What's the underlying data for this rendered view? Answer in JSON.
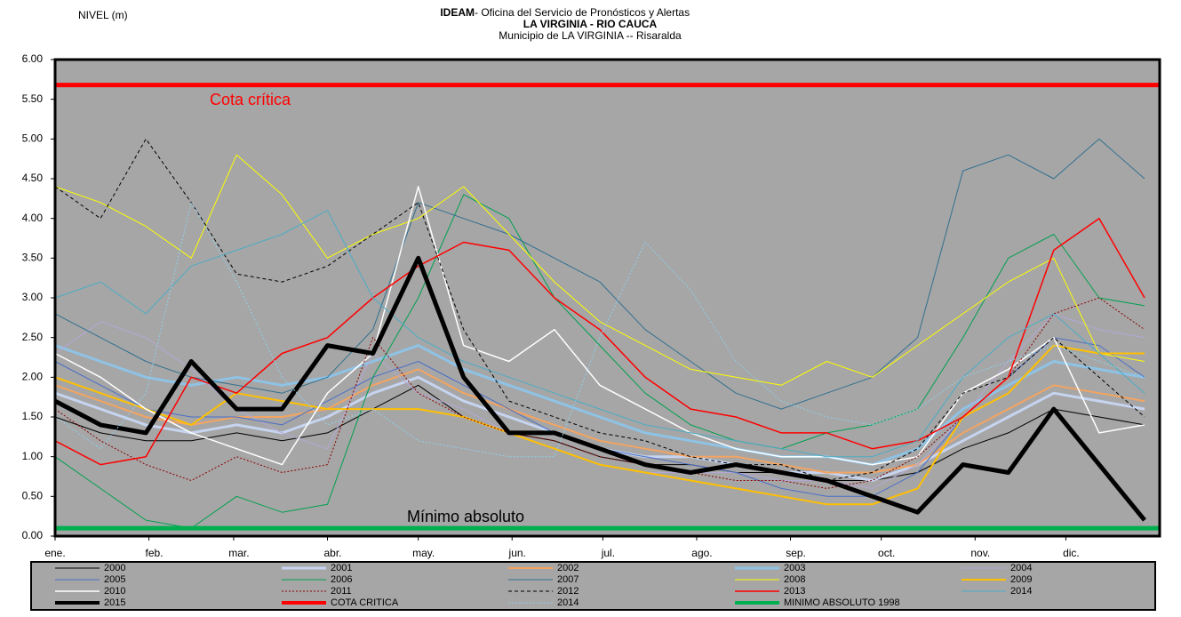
{
  "chart_data": {
    "type": "line",
    "title_org": "IDEAM",
    "title": " - Oficina del Servicio de Pronósticos y Alertas",
    "subtitle": "LA VIRGINIA - RIO CAUCA",
    "subtitle2": "Municipio de LA VIRGINIA -- Risaralda",
    "y_label": "NIVEL (m)",
    "annotations": [
      "Cota crítica",
      "Mínimo absoluto"
    ],
    "xlim": [
      0,
      365
    ],
    "xticks": [
      {
        "value": 0,
        "label": "ene."
      },
      {
        "value": 31,
        "label": "feb."
      },
      {
        "value": 59,
        "label": "mar."
      },
      {
        "value": 90,
        "label": "abr."
      },
      {
        "value": 120,
        "label": "may."
      },
      {
        "value": 151,
        "label": "jun."
      },
      {
        "value": 181,
        "label": "jul."
      },
      {
        "value": 212,
        "label": "ago."
      },
      {
        "value": 243,
        "label": "sep."
      },
      {
        "value": 273,
        "label": "oct."
      },
      {
        "value": 304,
        "label": "nov."
      },
      {
        "value": 334,
        "label": "dic."
      }
    ],
    "ylim": [
      0,
      6
    ],
    "yticks": [
      {
        "value": 0,
        "label": "0.00"
      },
      {
        "value": 0.5,
        "label": "0.50"
      },
      {
        "value": 1,
        "label": "1.00"
      },
      {
        "value": 1.5,
        "label": "1.50"
      },
      {
        "value": 2,
        "label": "2.00"
      },
      {
        "value": 2.5,
        "label": "2.50"
      },
      {
        "value": 3,
        "label": "3.00"
      },
      {
        "value": 3.5,
        "label": "3.50"
      },
      {
        "value": 4,
        "label": "4.00"
      },
      {
        "value": 4.5,
        "label": "4.50"
      },
      {
        "value": 5,
        "label": "5.00"
      },
      {
        "value": 5.5,
        "label": "5.50"
      },
      {
        "value": 6,
        "label": "6.00"
      }
    ],
    "x": [
      0,
      15,
      30,
      45,
      60,
      75,
      90,
      105,
      120,
      135,
      150,
      165,
      180,
      195,
      210,
      225,
      240,
      255,
      270,
      285,
      300,
      315,
      330,
      345,
      360
    ],
    "series": [
      {
        "name": "2000",
        "color": "#000000",
        "width": 1,
        "values": [
          1.5,
          1.3,
          1.2,
          1.2,
          1.3,
          1.2,
          1.3,
          1.6,
          1.9,
          1.5,
          1.3,
          1.2,
          1.0,
          0.9,
          0.9,
          0.8,
          0.8,
          0.7,
          0.7,
          0.8,
          1.1,
          1.3,
          1.6,
          1.5,
          1.4
        ]
      },
      {
        "name": "2001",
        "color": "#c6d4f0",
        "width": 3,
        "values": [
          1.8,
          1.6,
          1.4,
          1.3,
          1.4,
          1.3,
          1.5,
          1.8,
          2.0,
          1.7,
          1.5,
          1.3,
          1.1,
          1.0,
          1.0,
          0.9,
          0.8,
          0.8,
          0.7,
          0.9,
          1.2,
          1.5,
          1.8,
          1.7,
          1.6
        ]
      },
      {
        "name": "2002",
        "color": "#f4a460",
        "width": 2,
        "values": [
          1.9,
          1.7,
          1.5,
          1.4,
          1.5,
          1.5,
          1.6,
          1.9,
          2.1,
          1.8,
          1.6,
          1.4,
          1.2,
          1.1,
          1.0,
          1.0,
          0.9,
          0.8,
          0.8,
          0.9,
          1.3,
          1.6,
          1.9,
          1.8,
          1.7
        ]
      },
      {
        "name": "2003",
        "color": "#8ec3e6",
        "width": 3,
        "values": [
          2.4,
          2.2,
          2.0,
          1.9,
          2.0,
          1.9,
          2.0,
          2.2,
          2.4,
          2.1,
          1.9,
          1.7,
          1.5,
          1.3,
          1.2,
          1.1,
          1.0,
          1.0,
          0.9,
          1.1,
          1.6,
          1.9,
          2.2,
          2.1,
          2.0
        ]
      },
      {
        "name": "2004",
        "color": "#b4a7d6",
        "width": 1,
        "values": [
          2.3,
          2.7,
          2.5,
          2.1,
          1.6,
          1.3,
          1.1,
          2.3,
          1.8,
          1.6,
          1.3,
          1.1,
          0.9,
          0.8,
          0.8,
          0.8,
          0.7,
          0.7,
          0.6,
          0.9,
          1.5,
          2.2,
          2.8,
          2.6,
          2.5
        ]
      },
      {
        "name": "2005",
        "color": "#4a6fc7",
        "width": 1,
        "values": [
          2.2,
          1.9,
          1.6,
          1.5,
          1.5,
          1.4,
          1.7,
          2.0,
          2.2,
          1.9,
          1.6,
          1.3,
          1.1,
          1.0,
          0.9,
          0.8,
          0.6,
          0.5,
          0.5,
          0.8,
          1.5,
          2.0,
          2.5,
          2.4,
          2.0
        ]
      },
      {
        "name": "2006",
        "color": "#00a050",
        "width": 1,
        "values": [
          1.0,
          0.6,
          0.2,
          0.1,
          0.5,
          0.3,
          0.4,
          2.0,
          3.0,
          4.3,
          4.0,
          3.0,
          2.4,
          1.8,
          1.4,
          1.2,
          1.1,
          1.3,
          1.4,
          1.6,
          2.5,
          3.5,
          3.8,
          3.0,
          2.9
        ]
      },
      {
        "name": "2007",
        "color": "#31708f",
        "width": 1,
        "values": [
          2.8,
          2.5,
          2.2,
          2.0,
          1.9,
          1.8,
          2.0,
          2.6,
          4.2,
          4.0,
          3.8,
          3.5,
          3.2,
          2.6,
          2.2,
          1.8,
          1.6,
          1.8,
          2.0,
          2.5,
          4.6,
          4.8,
          4.5,
          5.0,
          4.5
        ]
      },
      {
        "name": "2008",
        "color": "#ffff00",
        "width": 1,
        "values": [
          4.4,
          4.2,
          3.9,
          3.5,
          4.8,
          4.3,
          3.5,
          3.8,
          4.0,
          4.4,
          3.8,
          3.2,
          2.7,
          2.4,
          2.1,
          2.0,
          1.9,
          2.2,
          2.0,
          2.4,
          2.8,
          3.2,
          3.5,
          2.3,
          2.2
        ]
      },
      {
        "name": "2009",
        "color": "#ffc000",
        "width": 2,
        "values": [
          2.0,
          1.8,
          1.6,
          1.4,
          1.8,
          1.7,
          1.6,
          1.6,
          1.6,
          1.5,
          1.3,
          1.1,
          0.9,
          0.8,
          0.7,
          0.6,
          0.5,
          0.4,
          0.4,
          0.6,
          1.5,
          1.8,
          2.4,
          2.3,
          2.3
        ]
      },
      {
        "name": "2010",
        "color": "#ffffff",
        "width": 1.5,
        "values": [
          2.3,
          2.0,
          1.6,
          1.3,
          1.1,
          0.9,
          1.8,
          2.3,
          4.4,
          2.4,
          2.2,
          2.6,
          1.9,
          1.6,
          1.3,
          1.1,
          1.0,
          1.0,
          0.9,
          1.0,
          1.8,
          2.1,
          2.5,
          1.3,
          1.4
        ]
      },
      {
        "name": "2011",
        "color": "#8b0000",
        "width": 1,
        "dash": "2,2",
        "values": [
          1.6,
          1.2,
          0.9,
          0.7,
          1.0,
          0.8,
          0.9,
          2.5,
          1.8,
          1.5,
          1.3,
          1.2,
          1.0,
          0.9,
          0.8,
          0.7,
          0.7,
          0.6,
          0.7,
          1.0,
          1.5,
          2.0,
          2.8,
          3.0,
          2.6
        ]
      },
      {
        "name": "2012",
        "color": "#000000",
        "width": 1,
        "dash": "4,3",
        "values": [
          4.4,
          4.0,
          5.0,
          4.2,
          3.3,
          3.2,
          3.4,
          3.8,
          4.2,
          2.6,
          1.7,
          1.5,
          1.3,
          1.2,
          1.0,
          0.9,
          0.9,
          0.7,
          0.8,
          1.1,
          1.8,
          2.0,
          2.5,
          2.0,
          1.5
        ]
      },
      {
        "name": "2013",
        "color": "#ff0000",
        "width": 1.5,
        "values": [
          1.2,
          0.9,
          1.0,
          2.0,
          1.8,
          2.3,
          2.5,
          3.0,
          3.4,
          3.7,
          3.6,
          3.0,
          2.6,
          2.0,
          1.6,
          1.5,
          1.3,
          1.3,
          1.1,
          1.2,
          1.5,
          2.0,
          3.6,
          4.0,
          3.0
        ]
      },
      {
        "name": "2014",
        "color": "#4bacc6",
        "width": 1,
        "values": [
          3.0,
          3.2,
          2.8,
          3.4,
          3.6,
          3.8,
          4.1,
          3.0,
          2.5,
          2.2,
          2.0,
          1.8,
          1.6,
          1.4,
          1.3,
          1.2,
          1.1,
          1.0,
          1.0,
          1.2,
          2.0,
          2.5,
          2.8,
          2.3,
          1.8
        ]
      },
      {
        "name": "2015",
        "color": "#000000",
        "width": 5,
        "values": [
          1.7,
          1.4,
          1.3,
          2.2,
          1.6,
          1.6,
          2.4,
          2.3,
          3.5,
          2.0,
          1.3,
          1.3,
          1.1,
          0.9,
          0.8,
          0.9,
          0.8,
          0.7,
          0.5,
          0.3,
          0.9,
          0.8,
          1.6,
          0.9,
          0.2
        ]
      },
      {
        "name": "COTA CRITICA",
        "color": "#ff0000",
        "width": 5,
        "x": [
          0,
          365
        ],
        "values": [
          5.68,
          5.68
        ]
      },
      {
        "name": "2014",
        "color": "#8fd0ea",
        "width": 1,
        "dash": "2,2",
        "values": [
          1.5,
          1.1,
          1.8,
          4.2,
          3.2,
          2.0,
          1.4,
          1.6,
          1.2,
          1.1,
          1.0,
          1.0,
          2.5,
          3.7,
          3.1,
          2.2,
          1.7,
          1.5,
          1.4,
          1.6,
          2.0,
          2.2,
          2.4,
          2.2,
          2.0
        ]
      },
      {
        "name": "MINIMO ABSOLUTO 1998",
        "color": "#00b050",
        "width": 5,
        "x": [
          0,
          365
        ],
        "values": [
          0.1,
          0.1
        ]
      }
    ]
  }
}
